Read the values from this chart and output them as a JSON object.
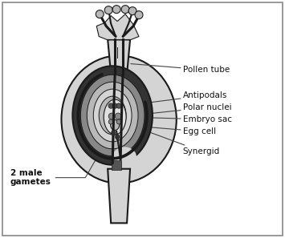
{
  "background_color": "#ffffff",
  "border_color": "#888888",
  "fig_width": 3.55,
  "fig_height": 2.97,
  "dpi": 100,
  "labels": {
    "pollen_tube": "Pollen tube",
    "antipodals": "Antipodals",
    "polar_nuclei": "Polar nuclei",
    "embryo_sac": "Embryo sac",
    "egg_cell": "Egg cell",
    "synergid": "Synergid",
    "male_gametes": "2 male\ngametes"
  },
  "label_fontsize": 7.5,
  "draw_color": "#1a1a1a",
  "fill_light": "#d4d4d4",
  "fill_medium": "#b8b8b8",
  "fill_dark": "#888888",
  "fill_darkest": "#555555",
  "fill_vdark": "#333333"
}
